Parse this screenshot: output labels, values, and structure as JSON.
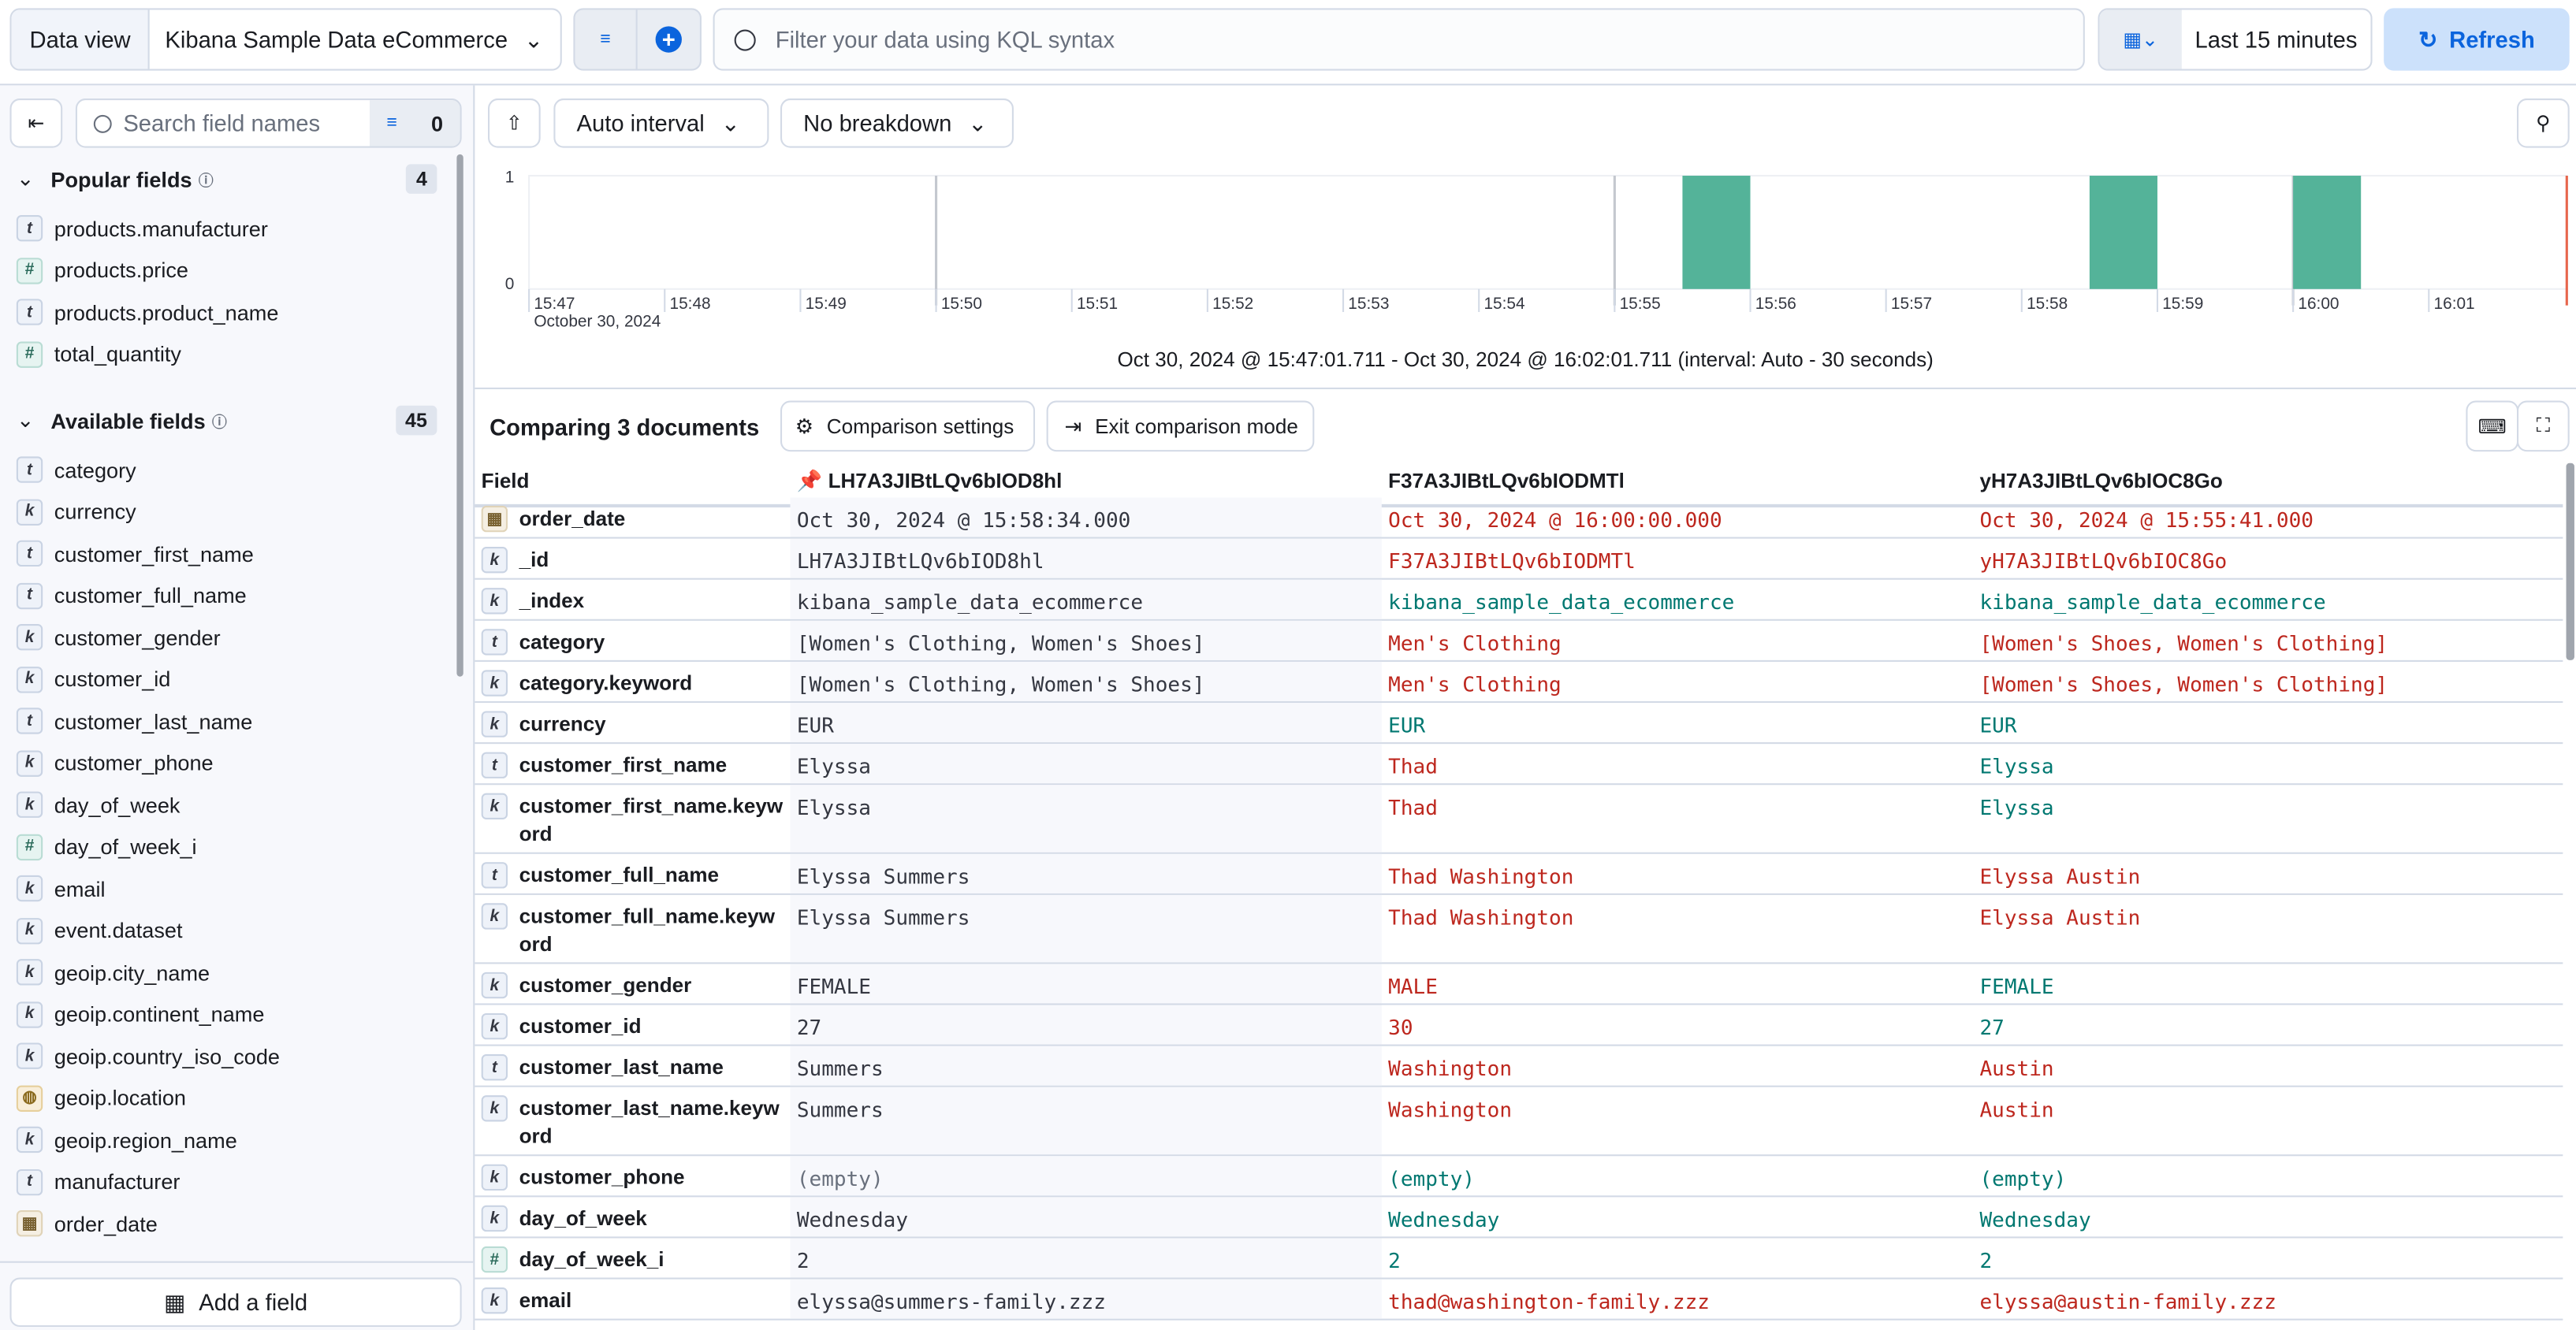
{
  "topbar": {
    "data_view_label": "Data view",
    "data_view_value": "Kibana Sample Data eCommerce",
    "query_placeholder": "Filter your data using KQL syntax",
    "time_range": "Last 15 minutes",
    "refresh_label": "Refresh"
  },
  "sidebar": {
    "search_placeholder": "Search field names",
    "filter_count": "0",
    "popular": {
      "title": "Popular fields",
      "count": "4",
      "items": [
        {
          "name": "products.manufacturer",
          "type": "t"
        },
        {
          "name": "products.price",
          "type": "#"
        },
        {
          "name": "products.product_name",
          "type": "t"
        },
        {
          "name": "total_quantity",
          "type": "#"
        }
      ]
    },
    "available": {
      "title": "Available fields",
      "count": "45",
      "items": [
        {
          "name": "category",
          "type": "t"
        },
        {
          "name": "currency",
          "type": "k"
        },
        {
          "name": "customer_first_name",
          "type": "t"
        },
        {
          "name": "customer_full_name",
          "type": "t"
        },
        {
          "name": "customer_gender",
          "type": "k"
        },
        {
          "name": "customer_id",
          "type": "k"
        },
        {
          "name": "customer_last_name",
          "type": "t"
        },
        {
          "name": "customer_phone",
          "type": "k"
        },
        {
          "name": "day_of_week",
          "type": "k"
        },
        {
          "name": "day_of_week_i",
          "type": "#"
        },
        {
          "name": "email",
          "type": "k"
        },
        {
          "name": "event.dataset",
          "type": "k"
        },
        {
          "name": "geoip.city_name",
          "type": "k"
        },
        {
          "name": "geoip.continent_name",
          "type": "k"
        },
        {
          "name": "geoip.country_iso_code",
          "type": "k"
        },
        {
          "name": "geoip.location",
          "type": "geo"
        },
        {
          "name": "geoip.region_name",
          "type": "k"
        },
        {
          "name": "manufacturer",
          "type": "t"
        },
        {
          "name": "order_date",
          "type": "date"
        }
      ]
    },
    "add_field_label": "Add a field"
  },
  "chart_toolbar": {
    "interval": "Auto interval",
    "breakdown": "No breakdown"
  },
  "chart_data": {
    "type": "bar",
    "x_ticks": [
      "15:47",
      "15:48",
      "15:49",
      "15:50",
      "15:51",
      "15:52",
      "15:53",
      "15:54",
      "15:55",
      "15:56",
      "15:57",
      "15:58",
      "15:59",
      "16:00",
      "16:01"
    ],
    "x_date_label": "October 30, 2024",
    "y_ticks": [
      "0",
      "1"
    ],
    "ylim": [
      0,
      1
    ],
    "bars": [
      {
        "start": "15:55:30",
        "end": "15:56:00",
        "value": 1
      },
      {
        "start": "15:58:30",
        "end": "15:59:00",
        "value": 1
      },
      {
        "start": "16:00:00",
        "end": "16:00:30",
        "value": 1
      }
    ],
    "bar_color": "#54b399",
    "now_marker": "16:02:01",
    "caption": "Oct 30, 2024 @ 15:47:01.711 - Oct 30, 2024 @ 16:02:01.711 (interval: Auto - 30 seconds)"
  },
  "comparison": {
    "title": "Comparing 3 documents",
    "settings_label": "Comparison settings",
    "exit_label": "Exit comparison mode",
    "columns": [
      "Field",
      "LH7A3JIBtLQv6bIOD8hl",
      "F37A3JIBtLQv6bIODMTl",
      "yH7A3JIBtLQv6bIOC8Go"
    ],
    "colors": {
      "same": "#007871",
      "diff": "#bd271e"
    },
    "rows": [
      {
        "field": "order_date",
        "type": "date",
        "values": [
          "Oct 30, 2024 @ 15:58:34.000",
          "Oct 30, 2024 @ 16:00:00.000",
          "Oct 30, 2024 @ 15:55:41.000"
        ],
        "status": [
          "diff",
          "diff"
        ]
      },
      {
        "field": "_id",
        "type": "k",
        "values": [
          "LH7A3JIBtLQv6bIOD8hl",
          "F37A3JIBtLQv6bIODMTl",
          "yH7A3JIBtLQv6bIOC8Go"
        ],
        "status": [
          "diff",
          "diff"
        ]
      },
      {
        "field": "_index",
        "type": "k",
        "values": [
          "kibana_sample_data_ecommerce",
          "kibana_sample_data_ecommerce",
          "kibana_sample_data_ecommerce"
        ],
        "status": [
          "same",
          "same"
        ]
      },
      {
        "field": "category",
        "type": "t",
        "values": [
          "[Women's Clothing, Women's Shoes]",
          "Men's Clothing",
          "[Women's Shoes, Women's Clothing]"
        ],
        "status": [
          "diff",
          "diff"
        ]
      },
      {
        "field": "category.keyword",
        "type": "k",
        "values": [
          "[Women's Clothing, Women's Shoes]",
          "Men's Clothing",
          "[Women's Shoes, Women's Clothing]"
        ],
        "status": [
          "diff",
          "diff"
        ]
      },
      {
        "field": "currency",
        "type": "k",
        "values": [
          "EUR",
          "EUR",
          "EUR"
        ],
        "status": [
          "same",
          "same"
        ]
      },
      {
        "field": "customer_first_name",
        "type": "t",
        "values": [
          "Elyssa",
          "Thad",
          "Elyssa"
        ],
        "status": [
          "diff",
          "same"
        ]
      },
      {
        "field": "customer_first_name.keyword",
        "type": "k",
        "values": [
          "Elyssa",
          "Thad",
          "Elyssa"
        ],
        "status": [
          "diff",
          "same"
        ]
      },
      {
        "field": "customer_full_name",
        "type": "t",
        "values": [
          "Elyssa Summers",
          "Thad Washington",
          "Elyssa Austin"
        ],
        "status": [
          "diff",
          "diff"
        ]
      },
      {
        "field": "customer_full_name.keyword",
        "type": "k",
        "values": [
          "Elyssa Summers",
          "Thad Washington",
          "Elyssa Austin"
        ],
        "status": [
          "diff",
          "diff"
        ]
      },
      {
        "field": "customer_gender",
        "type": "k",
        "values": [
          "FEMALE",
          "MALE",
          "FEMALE"
        ],
        "status": [
          "diff",
          "same"
        ]
      },
      {
        "field": "customer_id",
        "type": "k",
        "values": [
          "27",
          "30",
          "27"
        ],
        "status": [
          "diff",
          "same"
        ]
      },
      {
        "field": "customer_last_name",
        "type": "t",
        "values": [
          "Summers",
          "Washington",
          "Austin"
        ],
        "status": [
          "diff",
          "diff"
        ]
      },
      {
        "field": "customer_last_name.keyword",
        "type": "k",
        "values": [
          "Summers",
          "Washington",
          "Austin"
        ],
        "status": [
          "diff",
          "diff"
        ]
      },
      {
        "field": "customer_phone",
        "type": "k",
        "values": [
          "(empty)",
          "(empty)",
          "(empty)"
        ],
        "status": [
          "same",
          "same"
        ]
      },
      {
        "field": "day_of_week",
        "type": "k",
        "values": [
          "Wednesday",
          "Wednesday",
          "Wednesday"
        ],
        "status": [
          "same",
          "same"
        ]
      },
      {
        "field": "day_of_week_i",
        "type": "#",
        "values": [
          "2",
          "2",
          "2"
        ],
        "status": [
          "same",
          "same"
        ]
      },
      {
        "field": "email",
        "type": "k",
        "values": [
          "elyssa@summers-family.zzz",
          "thad@washington-family.zzz",
          "elyssa@austin-family.zzz"
        ],
        "status": [
          "diff",
          "diff"
        ]
      }
    ]
  }
}
